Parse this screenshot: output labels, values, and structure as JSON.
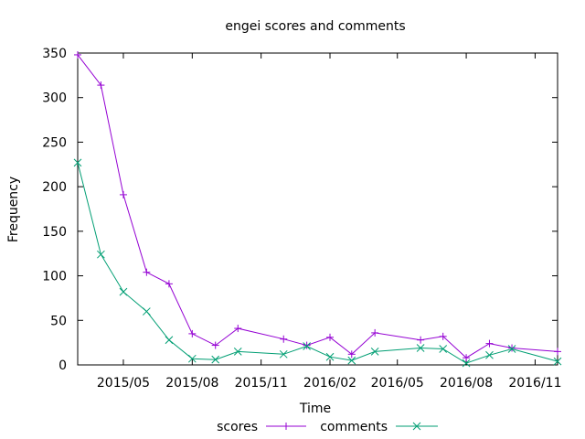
{
  "chart_data": {
    "type": "line",
    "title": "engei scores and comments",
    "xlabel": "Time",
    "ylabel": "Frequency",
    "ylim": [
      0,
      350
    ],
    "yticks": [
      0,
      50,
      100,
      150,
      200,
      250,
      300,
      350
    ],
    "xlim": [
      "2015-03-01",
      "2016-12-01"
    ],
    "xticks": [
      "2015-05-01",
      "2015-08-01",
      "2015-11-01",
      "2016-02-01",
      "2016-05-01",
      "2016-08-01",
      "2016-11-01"
    ],
    "xtick_labels": [
      "2015/05",
      "2015/08",
      "2015/11",
      "2016/02",
      "2016/05",
      "2016/08",
      "2016/11"
    ],
    "grid": false,
    "legend_position": "bottom",
    "series": [
      {
        "name": "scores",
        "color": "#9400d3",
        "marker": "plus",
        "x": [
          "2015-03-01",
          "2015-04-01",
          "2015-05-01",
          "2015-06-01",
          "2015-07-01",
          "2015-08-01",
          "2015-09-01",
          "2015-10-01",
          "2015-12-01",
          "2016-01-01",
          "2016-02-01",
          "2016-03-01",
          "2016-04-01",
          "2016-06-01",
          "2016-07-01",
          "2016-08-01",
          "2016-09-01",
          "2016-10-01",
          "2016-12-01"
        ],
        "values": [
          348,
          314,
          191,
          104,
          91,
          35,
          22,
          41,
          29,
          22,
          31,
          12,
          36,
          28,
          32,
          8,
          24,
          19,
          15
        ]
      },
      {
        "name": "comments",
        "color": "#009e73",
        "marker": "x",
        "x": [
          "2015-03-01",
          "2015-04-01",
          "2015-05-01",
          "2015-06-01",
          "2015-07-01",
          "2015-08-01",
          "2015-09-01",
          "2015-10-01",
          "2015-12-01",
          "2016-01-01",
          "2016-02-01",
          "2016-03-01",
          "2016-04-01",
          "2016-06-01",
          "2016-07-01",
          "2016-08-01",
          "2016-09-01",
          "2016-10-01",
          "2016-12-01"
        ],
        "values": [
          227,
          124,
          82,
          60,
          28,
          7,
          6,
          15,
          12,
          21,
          9,
          5,
          15,
          19,
          18,
          2,
          11,
          18,
          4
        ]
      }
    ]
  }
}
